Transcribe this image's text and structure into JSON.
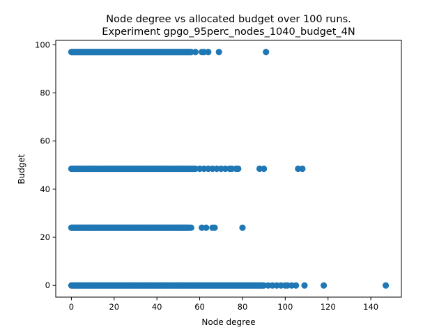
{
  "chart_data": {
    "type": "scatter",
    "title_line1": "Node degree vs allocated budget over 100 runs.",
    "title_line2": "Experiment gpgo_95perc_nodes_1040_budget_4N",
    "xlabel": "Node degree",
    "ylabel": "Budget",
    "xlim": [
      -7.3,
      154.3
    ],
    "ylim": [
      -4.85,
      101.85
    ],
    "xticks": [
      0,
      20,
      40,
      60,
      80,
      100,
      120,
      140
    ],
    "yticks": [
      0,
      20,
      40,
      60,
      80,
      100
    ],
    "marker_color": "#1f77b4",
    "grid": false,
    "legend": "none",
    "series": [
      {
        "levels": [
          {
            "y": 97,
            "dense_x": [
              0,
              56
            ],
            "x": [
              58,
              61,
              62,
              64,
              69,
              91
            ]
          },
          {
            "y": 48.5,
            "dense_x": [
              0,
              58
            ],
            "x": [
              60,
              62,
              64,
              66,
              68,
              70,
              72,
              74,
              75,
              77,
              78,
              88,
              90,
              106,
              108
            ]
          },
          {
            "y": 24,
            "dense_x": [
              0,
              55
            ],
            "x": [
              56,
              61,
              63,
              66,
              67,
              80
            ]
          },
          {
            "y": 0,
            "dense_x": [
              0,
              90
            ],
            "x": [
              92,
              94,
              96,
              98,
              100,
              101,
              103,
              105,
              109,
              118,
              147
            ]
          }
        ]
      }
    ]
  }
}
